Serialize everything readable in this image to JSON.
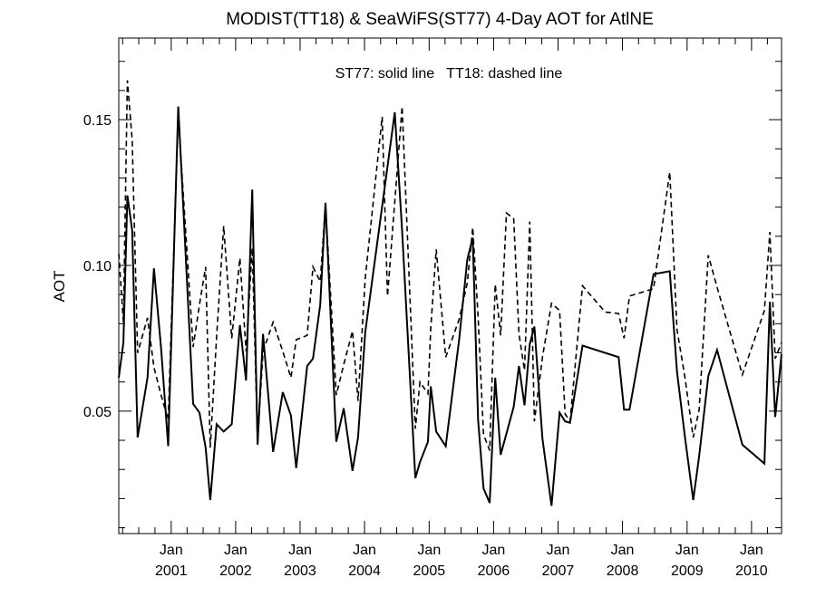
{
  "chart_data": {
    "type": "line",
    "title": "MODIST(TT18) & SeaWiFS(ST77) 4-Day AOT for AtlNE",
    "annotation": "ST77: solid line   TT18: dashed line",
    "ylabel": "AOT",
    "xlabel": "",
    "ylim": [
      0.008,
      0.178
    ],
    "xlim": [
      "2000-03-10",
      "2010-06-20"
    ],
    "grid": false,
    "y_ticks": [
      {
        "value": 0.05,
        "label": "0.05"
      },
      {
        "value": 0.1,
        "label": "0.10"
      },
      {
        "value": 0.15,
        "label": "0.15"
      }
    ],
    "x_ticks": [
      {
        "date": "2001-01-01",
        "month": "Jan",
        "year": "2001"
      },
      {
        "date": "2002-01-01",
        "month": "Jan",
        "year": "2002"
      },
      {
        "date": "2003-01-01",
        "month": "Jan",
        "year": "2003"
      },
      {
        "date": "2004-01-01",
        "month": "Jan",
        "year": "2004"
      },
      {
        "date": "2005-01-01",
        "month": "Jan",
        "year": "2005"
      },
      {
        "date": "2006-01-01",
        "month": "Jan",
        "year": "2006"
      },
      {
        "date": "2007-01-01",
        "month": "Jan",
        "year": "2007"
      },
      {
        "date": "2008-01-01",
        "month": "Jan",
        "year": "2008"
      },
      {
        "date": "2009-01-01",
        "month": "Jan",
        "year": "2009"
      },
      {
        "date": "2010-01-01",
        "month": "Jan",
        "year": "2010"
      }
    ],
    "series": [
      {
        "name": "ST77",
        "style": "solid",
        "color": "#000000",
        "points": [
          [
            "2000-03-10",
            0.0615
          ],
          [
            "2000-04-05",
            0.0735
          ],
          [
            "2000-04-28",
            0.124
          ],
          [
            "2000-05-25",
            0.112
          ],
          [
            "2000-06-25",
            0.041
          ],
          [
            "2000-08-20",
            0.0615
          ],
          [
            "2000-09-25",
            0.099
          ],
          [
            "2000-11-05",
            0.0715
          ],
          [
            "2000-12-15",
            0.038
          ],
          [
            "2001-02-10",
            0.1545
          ],
          [
            "2001-05-05",
            0.0525
          ],
          [
            "2001-06-10",
            0.0495
          ],
          [
            "2001-07-15",
            0.0375
          ],
          [
            "2001-08-10",
            0.0195
          ],
          [
            "2001-09-15",
            0.0455
          ],
          [
            "2001-10-25",
            0.043
          ],
          [
            "2001-12-10",
            0.0455
          ],
          [
            "2002-01-25",
            0.0795
          ],
          [
            "2002-03-01",
            0.0605
          ],
          [
            "2002-04-05",
            0.126
          ],
          [
            "2002-05-05",
            0.0385
          ],
          [
            "2002-06-05",
            0.0765
          ],
          [
            "2002-08-01",
            0.036
          ],
          [
            "2002-09-25",
            0.0565
          ],
          [
            "2002-11-10",
            0.0485
          ],
          [
            "2002-12-10",
            0.0305
          ],
          [
            "2003-02-10",
            0.0655
          ],
          [
            "2003-03-15",
            0.068
          ],
          [
            "2003-04-25",
            0.0865
          ],
          [
            "2003-05-25",
            0.1215
          ],
          [
            "2003-07-25",
            0.0395
          ],
          [
            "2003-09-05",
            0.051
          ],
          [
            "2003-10-25",
            0.0295
          ],
          [
            "2003-11-25",
            0.041
          ],
          [
            "2004-01-05",
            0.077
          ],
          [
            "2004-06-20",
            0.1525
          ],
          [
            "2004-08-01",
            0.112
          ],
          [
            "2004-10-15",
            0.027
          ],
          [
            "2004-11-10",
            0.0325
          ],
          [
            "2004-12-25",
            0.0395
          ],
          [
            "2005-01-10",
            0.0585
          ],
          [
            "2005-02-10",
            0.043
          ],
          [
            "2005-04-05",
            0.038
          ],
          [
            "2005-06-20",
            0.0745
          ],
          [
            "2005-08-05",
            0.102
          ],
          [
            "2005-09-05",
            0.1095
          ],
          [
            "2005-10-05",
            0.047
          ],
          [
            "2005-11-05",
            0.0235
          ],
          [
            "2005-12-10",
            0.0185
          ],
          [
            "2006-01-10",
            0.0615
          ],
          [
            "2006-02-10",
            0.035
          ],
          [
            "2006-04-25",
            0.0515
          ],
          [
            "2006-05-25",
            0.0655
          ],
          [
            "2006-06-25",
            0.052
          ],
          [
            "2006-07-25",
            0.073
          ],
          [
            "2006-08-20",
            0.079
          ],
          [
            "2006-10-05",
            0.0405
          ],
          [
            "2006-11-25",
            0.0175
          ],
          [
            "2007-01-10",
            0.0495
          ],
          [
            "2007-02-10",
            0.0465
          ],
          [
            "2007-03-10",
            0.046
          ],
          [
            "2007-05-20",
            0.0725
          ],
          [
            "2007-12-10",
            0.0685
          ],
          [
            "2008-01-10",
            0.0505
          ],
          [
            "2008-02-10",
            0.0505
          ],
          [
            "2008-06-25",
            0.097
          ],
          [
            "2008-09-25",
            0.098
          ],
          [
            "2008-11-05",
            0.0635
          ],
          [
            "2008-12-20",
            0.041
          ],
          [
            "2009-02-05",
            0.0195
          ],
          [
            "2009-03-10",
            0.0345
          ],
          [
            "2009-05-01",
            0.062
          ],
          [
            "2009-06-20",
            0.071
          ],
          [
            "2009-11-10",
            0.0385
          ],
          [
            "2010-03-15",
            0.032
          ],
          [
            "2010-04-15",
            0.0875
          ],
          [
            "2010-05-15",
            0.048
          ],
          [
            "2010-06-20",
            0.0695
          ]
        ]
      },
      {
        "name": "TT18",
        "style": "dashed",
        "color": "#000000",
        "points": [
          [
            "2000-03-10",
            0.104
          ],
          [
            "2000-04-05",
            0.0805
          ],
          [
            "2000-04-28",
            0.1635
          ],
          [
            "2000-05-25",
            0.143
          ],
          [
            "2000-06-25",
            0.07
          ],
          [
            "2000-08-20",
            0.082
          ],
          [
            "2000-09-25",
            0.065
          ],
          [
            "2000-11-05",
            0.0555
          ],
          [
            "2000-12-15",
            0.047
          ],
          [
            "2001-02-10",
            0.1515
          ],
          [
            "2001-05-05",
            0.072
          ],
          [
            "2001-06-10",
            0.0865
          ],
          [
            "2001-07-15",
            0.0995
          ],
          [
            "2001-08-10",
            0.0375
          ],
          [
            "2001-09-15",
            0.0755
          ],
          [
            "2001-10-25",
            0.1135
          ],
          [
            "2001-12-10",
            0.075
          ],
          [
            "2002-01-25",
            0.1025
          ],
          [
            "2002-03-01",
            0.0705
          ],
          [
            "2002-04-05",
            0.106
          ],
          [
            "2002-05-05",
            0.0395
          ],
          [
            "2002-06-05",
            0.0705
          ],
          [
            "2002-08-01",
            0.0805
          ],
          [
            "2002-09-25",
            0.0705
          ],
          [
            "2002-11-10",
            0.0615
          ],
          [
            "2002-12-10",
            0.0745
          ],
          [
            "2003-02-10",
            0.076
          ],
          [
            "2003-03-15",
            0.0995
          ],
          [
            "2003-04-25",
            0.0945
          ],
          [
            "2003-05-25",
            0.121
          ],
          [
            "2003-07-25",
            0.0555
          ],
          [
            "2003-09-05",
            0.066
          ],
          [
            "2003-10-25",
            0.0775
          ],
          [
            "2003-11-25",
            0.0535
          ],
          [
            "2004-01-05",
            0.0955
          ],
          [
            "2004-04-10",
            0.151
          ],
          [
            "2004-05-10",
            0.0895
          ],
          [
            "2004-08-01",
            0.1545
          ],
          [
            "2004-10-15",
            0.044
          ],
          [
            "2004-11-10",
            0.06
          ],
          [
            "2004-12-25",
            0.056
          ],
          [
            "2005-01-10",
            0.0785
          ],
          [
            "2005-02-10",
            0.1055
          ],
          [
            "2005-04-05",
            0.0685
          ],
          [
            "2005-06-20",
            0.0815
          ],
          [
            "2005-08-05",
            0.094
          ],
          [
            "2005-09-05",
            0.113
          ],
          [
            "2005-10-05",
            0.0825
          ],
          [
            "2005-11-05",
            0.042
          ],
          [
            "2005-12-10",
            0.0365
          ],
          [
            "2006-01-10",
            0.0935
          ],
          [
            "2006-02-10",
            0.076
          ],
          [
            "2006-03-15",
            0.118
          ],
          [
            "2006-04-25",
            0.116
          ],
          [
            "2006-05-25",
            0.0765
          ],
          [
            "2006-06-25",
            0.064
          ],
          [
            "2006-07-25",
            0.115
          ],
          [
            "2006-08-20",
            0.0465
          ],
          [
            "2006-10-05",
            0.0685
          ],
          [
            "2006-11-25",
            0.087
          ],
          [
            "2007-01-10",
            0.0845
          ],
          [
            "2007-02-10",
            0.049
          ],
          [
            "2007-03-10",
            0.0465
          ],
          [
            "2007-05-20",
            0.093
          ],
          [
            "2007-09-25",
            0.084
          ],
          [
            "2007-12-10",
            0.0835
          ],
          [
            "2008-01-10",
            0.075
          ],
          [
            "2008-02-10",
            0.0895
          ],
          [
            "2008-06-25",
            0.092
          ],
          [
            "2008-09-25",
            0.132
          ],
          [
            "2008-11-05",
            0.078
          ],
          [
            "2008-12-20",
            0.0615
          ],
          [
            "2009-02-05",
            0.041
          ],
          [
            "2009-03-10",
            0.0505
          ],
          [
            "2009-05-01",
            0.1035
          ],
          [
            "2009-06-20",
            0.0925
          ],
          [
            "2009-11-10",
            0.0625
          ],
          [
            "2010-03-15",
            0.0845
          ],
          [
            "2010-04-15",
            0.1115
          ],
          [
            "2010-05-15",
            0.068
          ],
          [
            "2010-06-20",
            0.0735
          ]
        ]
      }
    ]
  }
}
